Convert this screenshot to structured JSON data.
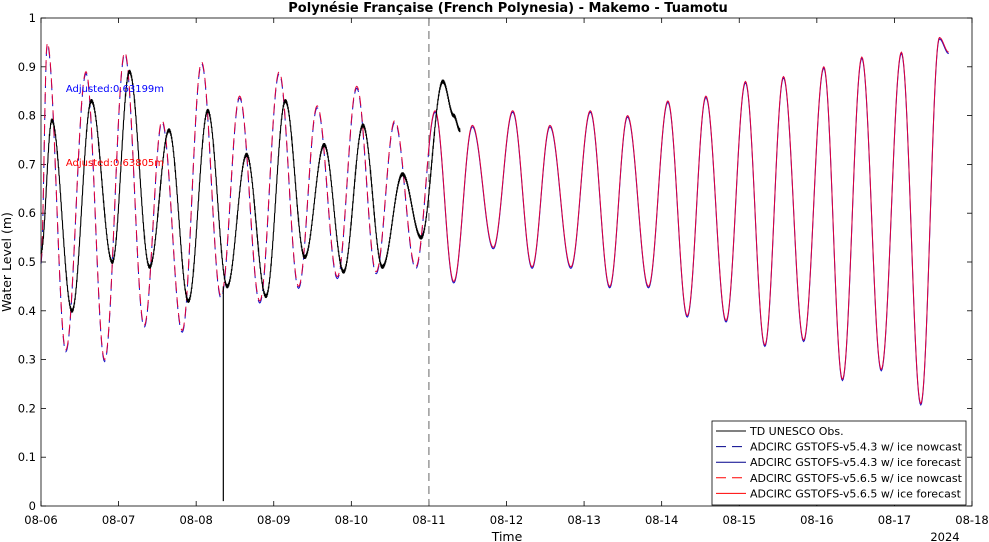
{
  "chart_data": {
    "type": "line",
    "title": "Polynésie Française (French Polynesia) - Makemo - Tuamotu",
    "xlabel": "Time",
    "ylabel": "Water Level (m)",
    "year_label": "2024",
    "xlim": [
      0,
      12
    ],
    "ylim": [
      0,
      1
    ],
    "x_ticks": [
      {
        "pos": 0,
        "label": "08-06"
      },
      {
        "pos": 1,
        "label": "08-07"
      },
      {
        "pos": 2,
        "label": "08-08"
      },
      {
        "pos": 3,
        "label": "08-09"
      },
      {
        "pos": 4,
        "label": "08-10"
      },
      {
        "pos": 5,
        "label": "08-11"
      },
      {
        "pos": 6,
        "label": "08-12"
      },
      {
        "pos": 7,
        "label": "08-13"
      },
      {
        "pos": 8,
        "label": "08-14"
      },
      {
        "pos": 9,
        "label": "08-15"
      },
      {
        "pos": 10,
        "label": "08-16"
      },
      {
        "pos": 11,
        "label": "08-17"
      },
      {
        "pos": 12,
        "label": "08-18"
      }
    ],
    "y_ticks": [
      0,
      0.1,
      0.2,
      0.3,
      0.4,
      0.5,
      0.6,
      0.7,
      0.8,
      0.9,
      1
    ],
    "nowcast_forecast_divider": 5,
    "annotations": [
      {
        "text": "Adjusted:0.63199m",
        "color": "#0000ff",
        "x": 0.32,
        "y": 0.848
      },
      {
        "text": "Adjusted:0.63805m",
        "color": "#ff0000",
        "x": 0.32,
        "y": 0.697
      }
    ],
    "legend": {
      "location": "lower-right",
      "entries": [
        {
          "label": "TD UNESCO Obs.",
          "color": "#000000",
          "dash": "solid"
        },
        {
          "label": "ADCIRC GSTOFS-v5.4.3  w/ ice nowcast",
          "color": "#00008b",
          "dash": "long"
        },
        {
          "label": "ADCIRC GSTOFS-v5.4.3  w/ ice forecast",
          "color": "#00008b",
          "dash": "solid"
        },
        {
          "label": "ADCIRC GSTOFS-v5.6.5  w/ ice nowcast",
          "color": "#ff0000",
          "dash": "long"
        },
        {
          "label": "ADCIRC GSTOFS-v5.6.5  w/ ice forecast",
          "color": "#ff0000",
          "dash": "solid"
        }
      ]
    },
    "model_extrema": [
      [
        0.0,
        0.5
      ],
      [
        0.08,
        0.95
      ],
      [
        0.32,
        0.32
      ],
      [
        0.58,
        0.89
      ],
      [
        0.82,
        0.3
      ],
      [
        1.08,
        0.93
      ],
      [
        1.33,
        0.37
      ],
      [
        1.56,
        0.79
      ],
      [
        1.82,
        0.36
      ],
      [
        2.07,
        0.91
      ],
      [
        2.32,
        0.43
      ],
      [
        2.56,
        0.84
      ],
      [
        2.82,
        0.42
      ],
      [
        3.07,
        0.89
      ],
      [
        3.32,
        0.45
      ],
      [
        3.56,
        0.82
      ],
      [
        3.82,
        0.47
      ],
      [
        4.07,
        0.86
      ],
      [
        4.32,
        0.48
      ],
      [
        4.56,
        0.79
      ],
      [
        4.83,
        0.49
      ],
      [
        5.08,
        0.81
      ],
      [
        5.32,
        0.46
      ],
      [
        5.56,
        0.78
      ],
      [
        5.83,
        0.53
      ],
      [
        6.08,
        0.81
      ],
      [
        6.33,
        0.49
      ],
      [
        6.56,
        0.78
      ],
      [
        6.83,
        0.49
      ],
      [
        7.08,
        0.81
      ],
      [
        7.33,
        0.45
      ],
      [
        7.56,
        0.8
      ],
      [
        7.83,
        0.45
      ],
      [
        8.08,
        0.83
      ],
      [
        8.33,
        0.39
      ],
      [
        8.57,
        0.84
      ],
      [
        8.83,
        0.38
      ],
      [
        9.08,
        0.87
      ],
      [
        9.33,
        0.33
      ],
      [
        9.57,
        0.88
      ],
      [
        9.83,
        0.34
      ],
      [
        10.09,
        0.9
      ],
      [
        10.33,
        0.26
      ],
      [
        10.58,
        0.92
      ],
      [
        10.83,
        0.28
      ],
      [
        11.09,
        0.93
      ],
      [
        11.34,
        0.21
      ],
      [
        11.58,
        0.96
      ],
      [
        11.7,
        0.93
      ]
    ],
    "observed_extrema": [
      [
        0.0,
        0.52
      ],
      [
        0.14,
        0.79
      ],
      [
        0.4,
        0.4
      ],
      [
        0.65,
        0.83
      ],
      [
        0.92,
        0.5
      ],
      [
        1.14,
        0.89
      ],
      [
        1.4,
        0.49
      ],
      [
        1.65,
        0.77
      ],
      [
        1.9,
        0.42
      ],
      [
        2.15,
        0.81
      ],
      [
        2.4,
        0.45
      ],
      [
        2.65,
        0.72
      ],
      [
        2.9,
        0.43
      ],
      [
        3.15,
        0.83
      ],
      [
        3.4,
        0.51
      ],
      [
        3.65,
        0.74
      ],
      [
        3.9,
        0.48
      ],
      [
        4.15,
        0.78
      ],
      [
        4.4,
        0.49
      ],
      [
        4.66,
        0.68
      ],
      [
        4.9,
        0.55
      ],
      [
        5.18,
        0.87
      ],
      [
        5.32,
        0.8
      ],
      [
        5.4,
        0.77
      ]
    ],
    "observed_spike": {
      "x": 2.35,
      "y": 0.01
    }
  }
}
